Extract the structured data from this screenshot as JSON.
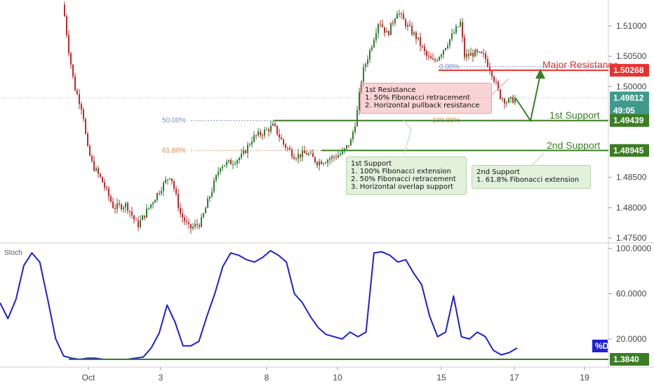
{
  "chart_data": {
    "type": "candlestick",
    "price_axis": {
      "ticks": [
        "1.51000",
        "1.50500",
        "1.50000",
        "1.48500",
        "1.48000",
        "1.47500"
      ],
      "tick_values": [
        1.51,
        1.505,
        1.5,
        1.485,
        1.48,
        1.475
      ]
    },
    "time_axis": {
      "labels": [
        "Oct",
        "3",
        "8",
        "10",
        "15",
        "17",
        "19"
      ]
    },
    "levels": {
      "major_resistance": {
        "label": "Major Resistance",
        "value": 1.50268,
        "tag": "1.50268",
        "color": "#e8312f"
      },
      "first_support": {
        "label": "1st Support",
        "value": 1.49439,
        "tag": "1.49439",
        "color": "#3b7d23"
      },
      "second_support": {
        "label": "2nd Support",
        "value": 1.48945,
        "tag": "1.48945",
        "color": "#3b7d23"
      },
      "current_price": {
        "tag": "1.49812",
        "timer": "49:05",
        "value": 1.49812,
        "color": "#3f9a8b"
      }
    },
    "fib_labels": {
      "left_50": "50.00%",
      "left_618": "61.80%",
      "right_0": "0.00%",
      "right_100": "100.00%"
    },
    "annotations": {
      "resistance_box": [
        "1st Resistance",
        "1. 50% Fibonacci retracement",
        "2. Horizontal pullback resistance"
      ],
      "support1_box": [
        "1st Support",
        "1. 100% Fibonacci extension",
        "2. 50% Fibonacci retracement",
        "3. Horizontal overlap support"
      ],
      "support2_box": [
        "2nd Support",
        "1. 61.8% Fibonacci extension"
      ]
    },
    "oscillator": {
      "name": "Stoch",
      "ticks": [
        "100.0000",
        "60.0000",
        "20.0000"
      ],
      "tick_values": [
        100,
        60,
        20
      ],
      "line_label": "%D",
      "level_tag": "1.3840",
      "level_value": 1.384,
      "line_color": "#1f1fd6",
      "values": [
        52,
        38,
        55,
        85,
        96,
        88,
        55,
        20,
        5,
        3,
        2,
        3,
        3,
        2,
        2,
        2,
        2,
        3,
        4,
        12,
        25,
        50,
        35,
        14,
        14,
        18,
        40,
        60,
        84,
        96,
        94,
        90,
        88,
        92,
        98,
        94,
        88,
        60,
        52,
        40,
        30,
        24,
        22,
        20,
        26,
        22,
        26,
        96,
        97,
        94,
        88,
        90,
        78,
        68,
        40,
        22,
        26,
        58,
        22,
        20,
        26,
        22,
        10,
        6,
        8,
        12
      ]
    },
    "colors": {
      "bull": "#2e7d32",
      "bear": "#c62828",
      "fib_50": "#7f8fc9",
      "fib_618": "#e0a070"
    }
  }
}
